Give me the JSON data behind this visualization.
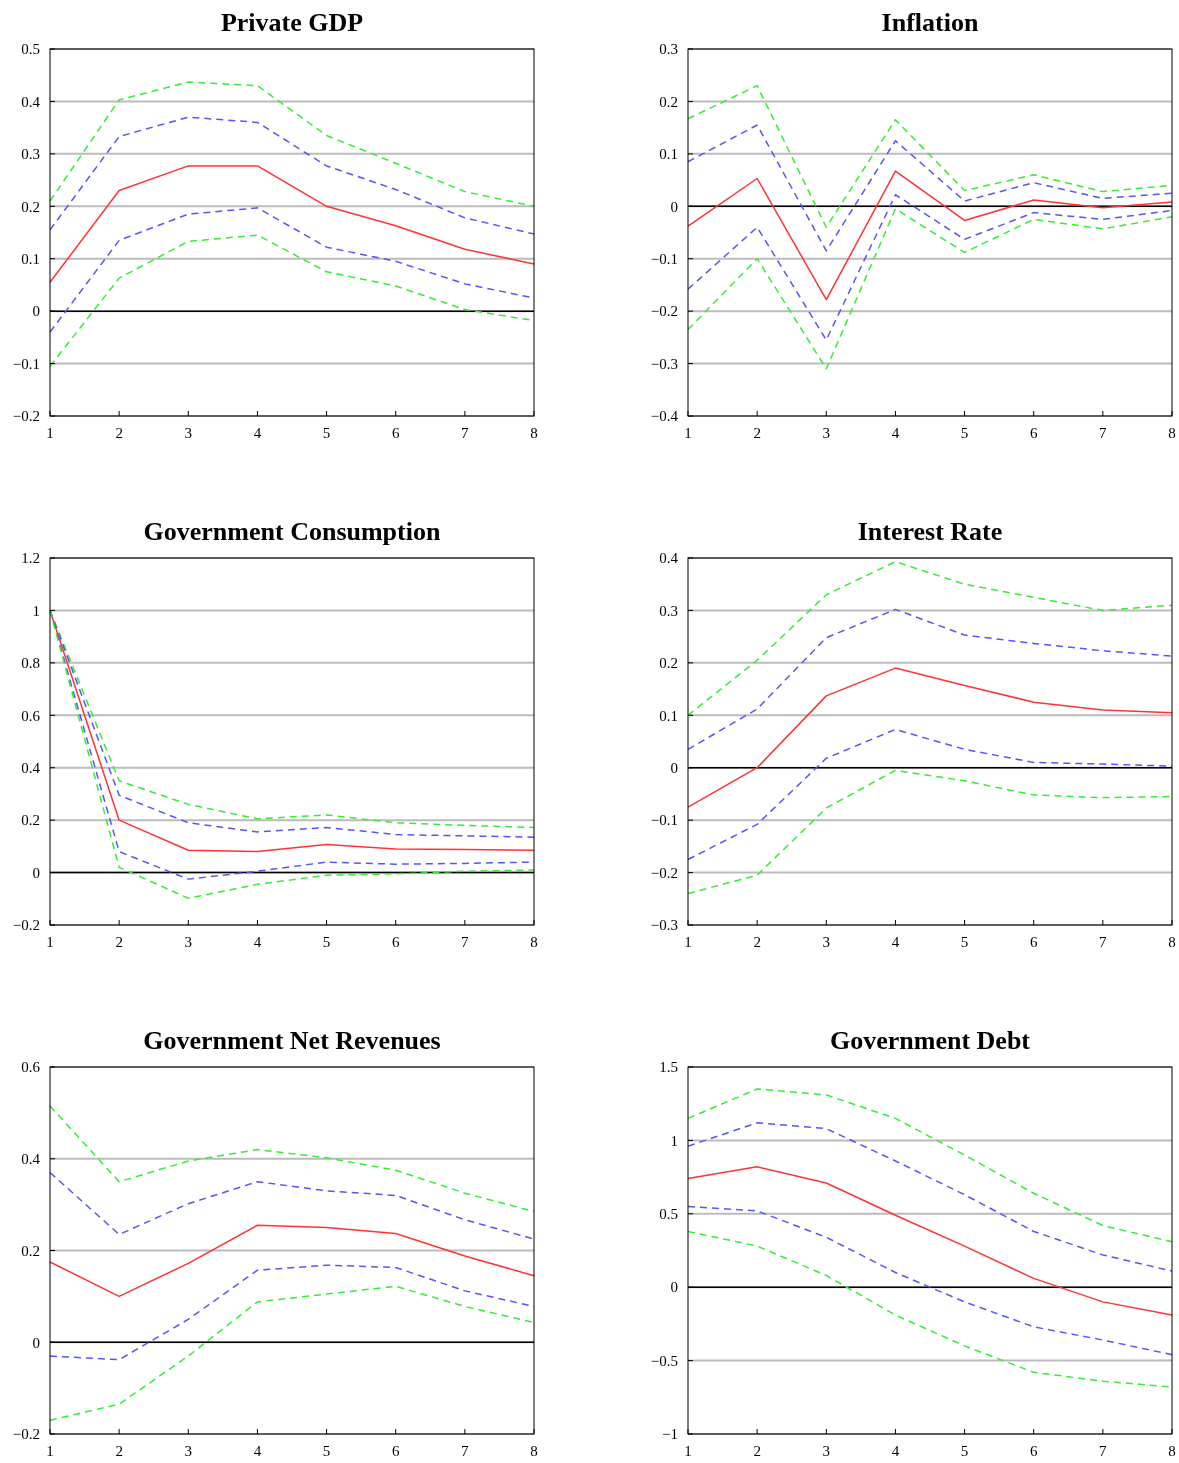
{
  "chart_data": [
    {
      "type": "line",
      "title": "Private GDP",
      "x": [
        1,
        2,
        3,
        4,
        5,
        6,
        7,
        8
      ],
      "xlim": [
        1,
        8
      ],
      "xticks": [
        1,
        2,
        3,
        4,
        5,
        6,
        7,
        8
      ],
      "ylim": [
        -0.2,
        0.5
      ],
      "yticks": [
        {
          "value": -0.2,
          "label": "−0.2"
        },
        {
          "value": -0.1,
          "label": "−0.1"
        },
        0,
        0.1,
        0.2,
        0.3,
        0.4,
        0.5
      ],
      "grid": "y",
      "ref_lines": [
        {
          "axis": "y",
          "value": 0,
          "color": "#000000"
        }
      ],
      "series": [
        {
          "color": "#33ee33",
          "line_style": "dashed",
          "values": [
            0.21,
            0.403,
            0.437,
            0.43,
            0.335,
            0.282,
            0.228,
            0.2
          ]
        },
        {
          "color": "#5555ff",
          "line_style": "dashed",
          "values": [
            0.155,
            0.333,
            0.37,
            0.36,
            0.277,
            0.232,
            0.178,
            0.147
          ]
        },
        {
          "color": "#ff3333",
          "line_style": "solid",
          "values": [
            0.055,
            0.23,
            0.277,
            0.277,
            0.2,
            0.163,
            0.118,
            0.09
          ]
        },
        {
          "color": "#5555ff",
          "line_style": "dashed",
          "values": [
            -0.04,
            0.135,
            0.185,
            0.197,
            0.122,
            0.095,
            0.052,
            0.025
          ]
        },
        {
          "color": "#33ee33",
          "line_style": "dashed",
          "values": [
            -0.105,
            0.063,
            0.133,
            0.145,
            0.075,
            0.048,
            0.003,
            -0.018
          ]
        }
      ]
    },
    {
      "type": "line",
      "title": "Inflation",
      "x": [
        1,
        2,
        3,
        4,
        5,
        6,
        7,
        8
      ],
      "xlim": [
        1,
        8
      ],
      "xticks": [
        1,
        2,
        3,
        4,
        5,
        6,
        7,
        8
      ],
      "ylim": [
        -0.4,
        0.3
      ],
      "yticks": [
        {
          "value": -0.4,
          "label": "−0.4"
        },
        {
          "value": -0.3,
          "label": "−0.3"
        },
        {
          "value": -0.2,
          "label": "−0.2"
        },
        {
          "value": -0.1,
          "label": "−0.1"
        },
        0,
        0.1,
        0.2,
        0.3
      ],
      "grid": "y",
      "ref_lines": [
        {
          "axis": "y",
          "value": 0,
          "color": "#000000"
        }
      ],
      "series": [
        {
          "color": "#33ee33",
          "line_style": "dashed",
          "values": [
            0.167,
            0.23,
            -0.04,
            0.165,
            0.03,
            0.06,
            0.028,
            0.04
          ]
        },
        {
          "color": "#5555ff",
          "line_style": "dashed",
          "values": [
            0.085,
            0.155,
            -0.085,
            0.125,
            0.01,
            0.045,
            0.015,
            0.025
          ]
        },
        {
          "color": "#ff3333",
          "line_style": "solid",
          "values": [
            -0.038,
            0.053,
            -0.178,
            0.067,
            -0.027,
            0.012,
            -0.003,
            0.008
          ]
        },
        {
          "color": "#5555ff",
          "line_style": "dashed",
          "values": [
            -0.158,
            -0.04,
            -0.255,
            0.022,
            -0.063,
            -0.012,
            -0.025,
            -0.008
          ]
        },
        {
          "color": "#33ee33",
          "line_style": "dashed",
          "values": [
            -0.235,
            -0.1,
            -0.31,
            -0.005,
            -0.088,
            -0.025,
            -0.043,
            -0.02
          ]
        }
      ]
    },
    {
      "type": "line",
      "title": "Government Consumption",
      "x": [
        1,
        2,
        3,
        4,
        5,
        6,
        7,
        8
      ],
      "xlim": [
        1,
        8
      ],
      "xticks": [
        1,
        2,
        3,
        4,
        5,
        6,
        7,
        8
      ],
      "ylim": [
        -0.2,
        1.2
      ],
      "yticks": [
        {
          "value": -0.2,
          "label": "−0.2"
        },
        0,
        0.2,
        0.4,
        0.6,
        0.8,
        1,
        1.2
      ],
      "grid": "y",
      "ref_lines": [
        {
          "axis": "y",
          "value": 0,
          "color": "#000000"
        }
      ],
      "series": [
        {
          "color": "#33ee33",
          "line_style": "dashed",
          "values": [
            1,
            0.35,
            0.26,
            0.205,
            0.22,
            0.19,
            0.18,
            0.172
          ]
        },
        {
          "color": "#5555ff",
          "line_style": "dashed",
          "values": [
            1,
            0.295,
            0.19,
            0.155,
            0.172,
            0.145,
            0.14,
            0.135
          ]
        },
        {
          "color": "#ff3333",
          "line_style": "solid",
          "values": [
            1,
            0.2,
            0.085,
            0.08,
            0.107,
            0.09,
            0.088,
            0.085
          ]
        },
        {
          "color": "#5555ff",
          "line_style": "dashed",
          "values": [
            1,
            0.08,
            -0.025,
            0.005,
            0.04,
            0.032,
            0.035,
            0.04
          ]
        },
        {
          "color": "#33ee33",
          "line_style": "dashed",
          "values": [
            1,
            0.02,
            -0.098,
            -0.045,
            -0.01,
            -0.005,
            0.005,
            0.01
          ]
        }
      ]
    },
    {
      "type": "line",
      "title": "Interest Rate",
      "x": [
        1,
        2,
        3,
        4,
        5,
        6,
        7,
        8
      ],
      "xlim": [
        1,
        8
      ],
      "xticks": [
        1,
        2,
        3,
        4,
        5,
        6,
        7,
        8
      ],
      "ylim": [
        -0.3,
        0.4
      ],
      "yticks": [
        {
          "value": -0.3,
          "label": "−0.3"
        },
        {
          "value": -0.2,
          "label": "−0.2"
        },
        {
          "value": -0.1,
          "label": "−0.1"
        },
        0,
        0.1,
        0.2,
        0.3,
        0.4
      ],
      "grid": "y",
      "ref_lines": [
        {
          "axis": "y",
          "value": 0,
          "color": "#000000"
        }
      ],
      "series": [
        {
          "color": "#33ee33",
          "line_style": "dashed",
          "values": [
            0.1,
            0.205,
            0.33,
            0.393,
            0.35,
            0.325,
            0.3,
            0.31
          ]
        },
        {
          "color": "#5555ff",
          "line_style": "dashed",
          "values": [
            0.035,
            0.112,
            0.248,
            0.302,
            0.253,
            0.237,
            0.223,
            0.213
          ]
        },
        {
          "color": "#ff3333",
          "line_style": "solid",
          "values": [
            -0.075,
            0.0,
            0.137,
            0.19,
            0.157,
            0.125,
            0.11,
            0.105
          ]
        },
        {
          "color": "#5555ff",
          "line_style": "dashed",
          "values": [
            -0.175,
            -0.108,
            0.018,
            0.073,
            0.035,
            0.01,
            0.007,
            0.003
          ]
        },
        {
          "color": "#33ee33",
          "line_style": "dashed",
          "values": [
            -0.24,
            -0.205,
            -0.077,
            -0.005,
            -0.025,
            -0.052,
            -0.057,
            -0.055
          ]
        }
      ]
    },
    {
      "type": "line",
      "title": "Government Net Revenues",
      "x": [
        1,
        2,
        3,
        4,
        5,
        6,
        7,
        8
      ],
      "xlim": [
        1,
        8
      ],
      "xticks": [
        1,
        2,
        3,
        4,
        5,
        6,
        7,
        8
      ],
      "ylim": [
        -0.2,
        0.6
      ],
      "yticks": [
        {
          "value": -0.2,
          "label": "−0.2"
        },
        0,
        0.2,
        0.4,
        0.6
      ],
      "grid": "y",
      "ref_lines": [
        {
          "axis": "y",
          "value": 0,
          "color": "#000000"
        }
      ],
      "series": [
        {
          "color": "#33ee33",
          "line_style": "dashed",
          "values": [
            0.515,
            0.35,
            0.395,
            0.42,
            0.402,
            0.375,
            0.325,
            0.285
          ]
        },
        {
          "color": "#5555ff",
          "line_style": "dashed",
          "values": [
            0.37,
            0.235,
            0.302,
            0.35,
            0.33,
            0.32,
            0.267,
            0.225
          ]
        },
        {
          "color": "#ff3333",
          "line_style": "solid",
          "values": [
            0.175,
            0.1,
            0.172,
            0.255,
            0.25,
            0.237,
            0.188,
            0.145
          ]
        },
        {
          "color": "#5555ff",
          "line_style": "dashed",
          "values": [
            -0.03,
            -0.038,
            0.05,
            0.157,
            0.168,
            0.163,
            0.112,
            0.078
          ]
        },
        {
          "color": "#33ee33",
          "line_style": "dashed",
          "values": [
            -0.17,
            -0.135,
            -0.03,
            0.088,
            0.105,
            0.122,
            0.078,
            0.043
          ]
        }
      ]
    },
    {
      "type": "line",
      "title": "Government Debt",
      "x": [
        1,
        2,
        3,
        4,
        5,
        6,
        7,
        8
      ],
      "xlim": [
        1,
        8
      ],
      "xticks": [
        1,
        2,
        3,
        4,
        5,
        6,
        7,
        8
      ],
      "ylim": [
        -1,
        1.5
      ],
      "yticks": [
        {
          "value": -1,
          "label": "−1"
        },
        {
          "value": -0.5,
          "label": "−0.5"
        },
        0,
        0.5,
        1,
        1.5
      ],
      "grid": "y",
      "ref_lines": [
        {
          "axis": "y",
          "value": 0,
          "color": "#000000"
        }
      ],
      "series": [
        {
          "color": "#33ee33",
          "line_style": "dashed",
          "values": [
            1.15,
            1.35,
            1.31,
            1.15,
            0.9,
            0.64,
            0.42,
            0.31
          ]
        },
        {
          "color": "#5555ff",
          "line_style": "dashed",
          "values": [
            0.96,
            1.12,
            1.08,
            0.86,
            0.63,
            0.38,
            0.22,
            0.11
          ]
        },
        {
          "color": "#ff3333",
          "line_style": "solid",
          "values": [
            0.74,
            0.82,
            0.71,
            0.49,
            0.28,
            0.06,
            -0.1,
            -0.19
          ]
        },
        {
          "color": "#5555ff",
          "line_style": "dashed",
          "values": [
            0.55,
            0.52,
            0.34,
            0.1,
            -0.1,
            -0.27,
            -0.36,
            -0.46
          ]
        },
        {
          "color": "#33ee33",
          "line_style": "dashed",
          "values": [
            0.38,
            0.28,
            0.08,
            -0.19,
            -0.4,
            -0.58,
            -0.64,
            -0.68
          ]
        }
      ]
    }
  ]
}
